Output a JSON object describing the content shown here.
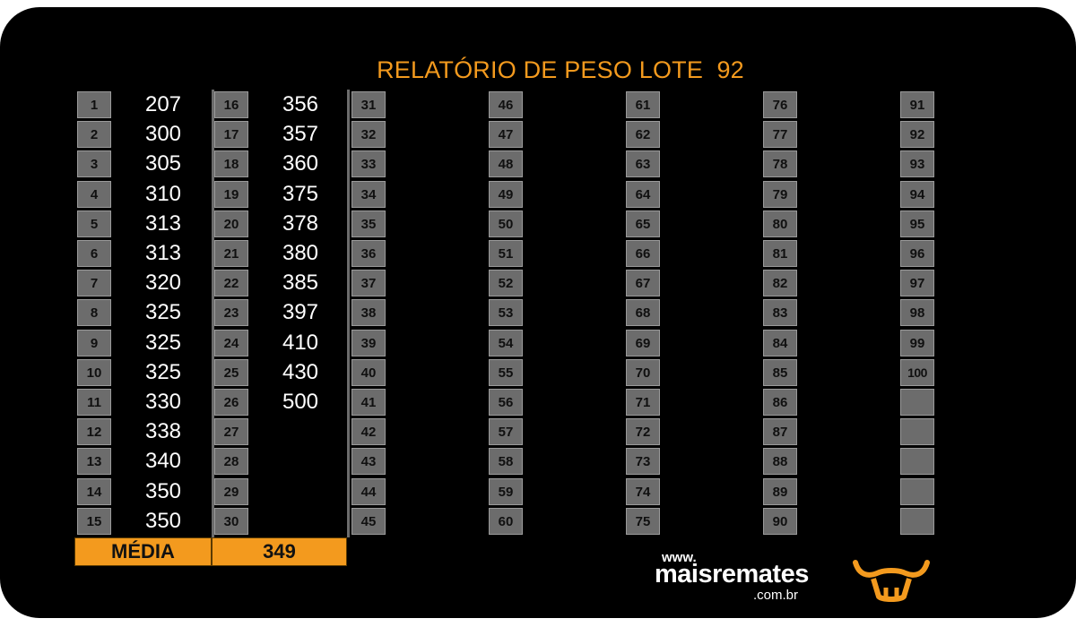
{
  "title": "RELATÓRIO DE PESO LOTE  92",
  "columns": [
    {
      "start": 1,
      "weights": [
        "207",
        "300",
        "305",
        "310",
        "313",
        "313",
        "320",
        "325",
        "325",
        "325",
        "330",
        "338",
        "340",
        "350",
        "350"
      ]
    },
    {
      "start": 16,
      "weights": [
        "356",
        "357",
        "360",
        "375",
        "378",
        "380",
        "385",
        "397",
        "410",
        "430",
        "500",
        "",
        "",
        "",
        ""
      ]
    },
    {
      "start": 31,
      "weights": []
    },
    {
      "start": 46,
      "weights": []
    },
    {
      "start": 61,
      "weights": []
    },
    {
      "start": 76,
      "weights": []
    },
    {
      "start": 91,
      "weights": []
    }
  ],
  "summary": {
    "label": "MÉDIA",
    "value": "349"
  },
  "brand": {
    "www": "www.",
    "name": "maisremates",
    "tld": ".com.br",
    "logo_icon": "bull-head-icon"
  },
  "colors": {
    "accent": "#f39a1e",
    "cell": "#6c6c6c",
    "background": "#000000"
  }
}
